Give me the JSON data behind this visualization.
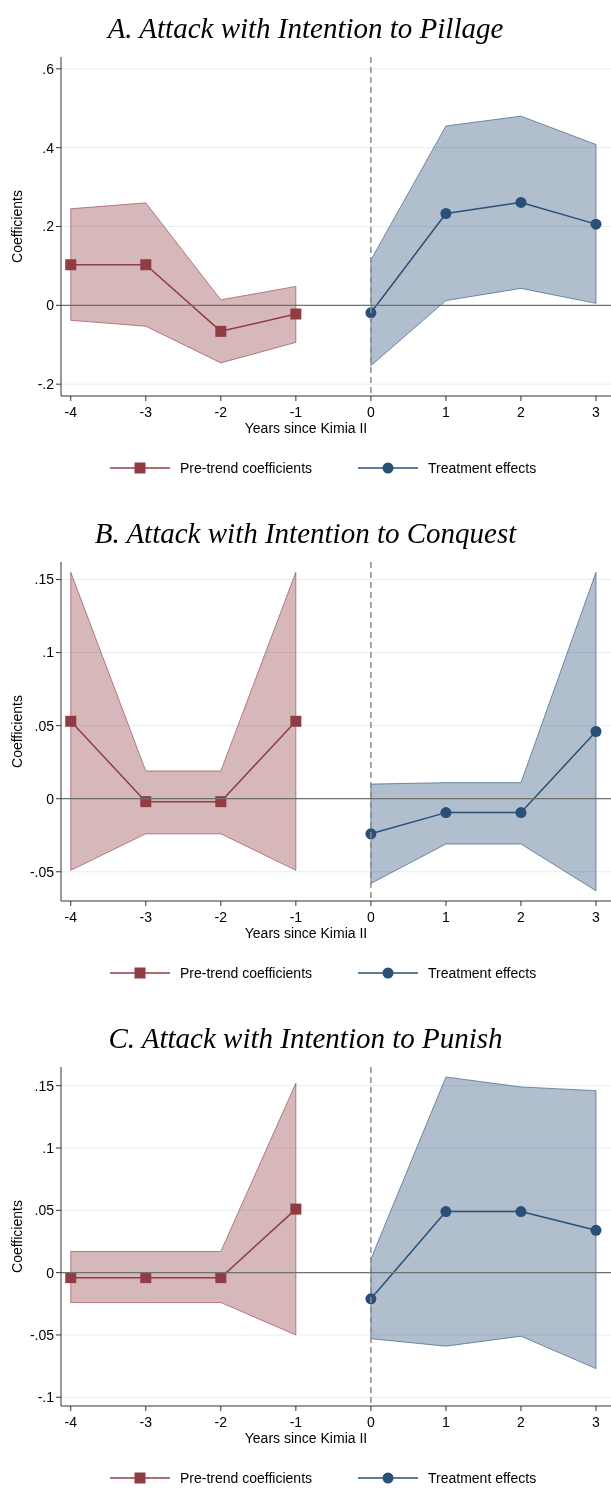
{
  "chart_data": [
    {
      "type": "line",
      "title": "A. Attack with Intention to Pillage",
      "xlabel": "Years since Kimia II",
      "ylabel": "Coefficients",
      "xlim": [
        -4.13,
        3.2
      ],
      "xticks": [
        -4,
        -3,
        -2,
        -1,
        0,
        1,
        2,
        3
      ],
      "ylim": [
        -0.23,
        0.63
      ],
      "yticks": [
        {
          "value": -0.2,
          "label": "-.2"
        },
        {
          "value": 0,
          "label": "0"
        },
        {
          "value": 0.2,
          "label": ".2"
        },
        {
          "value": 0.4,
          "label": ".4"
        },
        {
          "value": 0.6,
          "label": ".6"
        }
      ],
      "grid": "y",
      "legend": "bottom",
      "ref_lines": [
        {
          "axis": "x",
          "value": 0,
          "line_style": "dashed",
          "color": "#8c8c8c"
        },
        {
          "axis": "y",
          "value": 0,
          "line_style": "solid",
          "color": "#707070"
        }
      ],
      "series": [
        {
          "name": "Pre-trend coefficients",
          "color": "#903c45",
          "marker": "square",
          "x": [
            -4,
            -3,
            -2,
            -1
          ],
          "values": [
            0.103,
            0.103,
            -0.066,
            -0.022
          ],
          "lower": [
            -0.038,
            -0.053,
            -0.146,
            -0.094
          ],
          "upper": [
            0.245,
            0.26,
            0.014,
            0.048
          ]
        },
        {
          "name": "Treatment effects",
          "color": "#2a5078",
          "marker": "circle",
          "x": [
            0,
            1,
            2,
            3
          ],
          "values": [
            -0.019,
            0.233,
            0.261,
            0.206
          ],
          "lower": [
            -0.153,
            0.012,
            0.043,
            0.005
          ],
          "upper": [
            0.115,
            0.455,
            0.48,
            0.408
          ]
        }
      ]
    },
    {
      "type": "line",
      "title": "B. Attack with Intention to Conquest",
      "xlabel": "Years since Kimia II",
      "ylabel": "Coefficients",
      "xlim": [
        -4.13,
        3.2
      ],
      "xticks": [
        -4,
        -3,
        -2,
        -1,
        0,
        1,
        2,
        3
      ],
      "ylim": [
        -0.07,
        0.162
      ],
      "yticks": [
        {
          "value": -0.05,
          "label": "-.05"
        },
        {
          "value": 0,
          "label": "0"
        },
        {
          "value": 0.05,
          "label": ".05"
        },
        {
          "value": 0.1,
          "label": ".1"
        },
        {
          "value": 0.15,
          "label": ".15"
        }
      ],
      "grid": "y",
      "legend": "bottom",
      "ref_lines": [
        {
          "axis": "x",
          "value": 0,
          "line_style": "dashed",
          "color": "#8c8c8c"
        },
        {
          "axis": "y",
          "value": 0,
          "line_style": "solid",
          "color": "#707070"
        }
      ],
      "series": [
        {
          "name": "Pre-trend coefficients",
          "color": "#903c45",
          "marker": "square",
          "x": [
            -4,
            -3,
            -2,
            -1
          ],
          "values": [
            0.053,
            -0.002,
            -0.002,
            0.053
          ],
          "lower": [
            -0.049,
            -0.024,
            -0.024,
            -0.049
          ],
          "upper": [
            0.155,
            0.019,
            0.019,
            0.155
          ]
        },
        {
          "name": "Treatment effects",
          "color": "#2a5078",
          "marker": "circle",
          "x": [
            0,
            1,
            2,
            3
          ],
          "values": [
            -0.024,
            -0.0095,
            -0.0095,
            0.046
          ],
          "lower": [
            -0.058,
            -0.031,
            -0.031,
            -0.063
          ],
          "upper": [
            0.01,
            0.011,
            0.011,
            0.155
          ]
        }
      ]
    },
    {
      "type": "line",
      "title": "C. Attack with Intention to Punish",
      "xlabel": "Years since Kimia II",
      "ylabel": "Coefficients",
      "xlim": [
        -4.13,
        3.2
      ],
      "xticks": [
        -4,
        -3,
        -2,
        -1,
        0,
        1,
        2,
        3
      ],
      "ylim": [
        -0.107,
        0.165
      ],
      "yticks": [
        {
          "value": -0.1,
          "label": "-.1"
        },
        {
          "value": -0.05,
          "label": "-.05"
        },
        {
          "value": 0,
          "label": "0"
        },
        {
          "value": 0.05,
          "label": ".05"
        },
        {
          "value": 0.1,
          "label": ".1"
        },
        {
          "value": 0.15,
          "label": ".15"
        }
      ],
      "grid": "y",
      "legend": "bottom",
      "ref_lines": [
        {
          "axis": "x",
          "value": 0,
          "line_style": "dashed",
          "color": "#8c8c8c"
        },
        {
          "axis": "y",
          "value": 0,
          "line_style": "solid",
          "color": "#707070"
        }
      ],
      "series": [
        {
          "name": "Pre-trend coefficients",
          "color": "#903c45",
          "marker": "square",
          "x": [
            -4,
            -3,
            -2,
            -1
          ],
          "values": [
            -0.004,
            -0.004,
            -0.004,
            0.051
          ],
          "lower": [
            -0.024,
            -0.024,
            -0.024,
            -0.05
          ],
          "upper": [
            0.017,
            0.017,
            0.017,
            0.152
          ]
        },
        {
          "name": "Treatment effects",
          "color": "#2a5078",
          "marker": "circle",
          "x": [
            0,
            1,
            2,
            3
          ],
          "values": [
            -0.021,
            0.049,
            0.049,
            0.034
          ],
          "lower": [
            -0.053,
            -0.059,
            -0.051,
            -0.077
          ],
          "upper": [
            0.011,
            0.157,
            0.149,
            0.146
          ]
        }
      ]
    }
  ]
}
